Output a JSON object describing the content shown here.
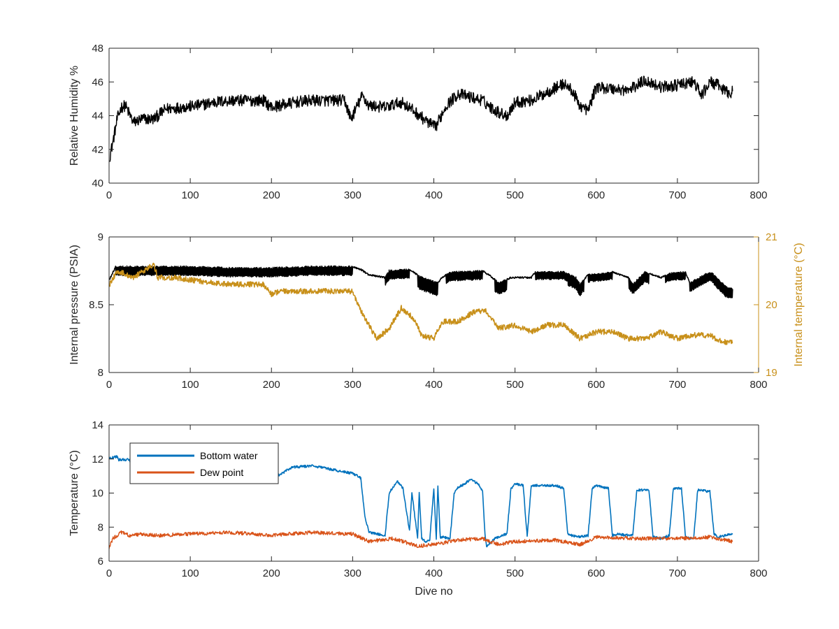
{
  "chart_data": [
    {
      "type": "line",
      "xlabel": "",
      "ylabel": "Relative Humidity %",
      "xlim": [
        0,
        800
      ],
      "ylim": [
        40,
        48
      ],
      "xticks": [
        "0",
        "100",
        "200",
        "300",
        "400",
        "500",
        "600",
        "700",
        "800"
      ],
      "yticks": [
        "40",
        "42",
        "44",
        "46",
        "48"
      ],
      "series": [
        {
          "color": "#000000",
          "noise": 0.35,
          "x": [
            1,
            5,
            10,
            15,
            20,
            30,
            40,
            55,
            70,
            90,
            110,
            130,
            150,
            170,
            190,
            200,
            210,
            230,
            250,
            270,
            290,
            298,
            305,
            312,
            320,
            340,
            360,
            375,
            390,
            402,
            415,
            430,
            445,
            460,
            470,
            480,
            490,
            500,
            520,
            540,
            560,
            570,
            580,
            590,
            600,
            620,
            640,
            660,
            680,
            700,
            720,
            730,
            740,
            750,
            760,
            768
          ],
          "y": [
            41.6,
            42.5,
            43.8,
            44.5,
            44.6,
            43.6,
            43.8,
            43.8,
            44.4,
            44.5,
            44.6,
            44.8,
            44.9,
            44.9,
            44.9,
            44.5,
            44.6,
            44.8,
            44.9,
            44.9,
            44.9,
            43.8,
            44.5,
            45.2,
            44.6,
            44.5,
            44.8,
            44.3,
            43.7,
            43.3,
            44.6,
            45.3,
            45.1,
            44.9,
            44.5,
            44.2,
            44.0,
            44.8,
            44.9,
            45.4,
            45.9,
            45.5,
            44.6,
            44.3,
            45.7,
            45.6,
            45.5,
            46.1,
            45.7,
            45.8,
            46.0,
            45.2,
            46.0,
            45.8,
            45.4,
            45.4
          ]
        }
      ]
    },
    {
      "type": "line",
      "xlabel": "",
      "ylabel": "Internal pressure (PSIA)",
      "y2label": "Internal temperature (°C)",
      "xlim": [
        0,
        800
      ],
      "ylim": [
        8,
        9
      ],
      "y2lim": [
        19,
        21
      ],
      "xticks": [
        "0",
        "100",
        "200",
        "300",
        "400",
        "500",
        "600",
        "700",
        "800"
      ],
      "yticks": [
        "8",
        "8.5",
        "9"
      ],
      "y2ticks": [
        "19",
        "20",
        "21"
      ],
      "y2color": "#c8901a",
      "series": [
        {
          "axis": "left",
          "color": "#000000",
          "noise": 0.006,
          "osc": [
            [
              8,
              300,
              0.06
            ],
            [
              340,
              370,
              0.06
            ],
            [
              380,
              405,
              0.09
            ],
            [
              415,
              460,
              0.06
            ],
            [
              475,
              490,
              0.08
            ],
            [
              525,
              565,
              0.05
            ],
            [
              565,
              585,
              0.08
            ],
            [
              590,
              620,
              0.05
            ],
            [
              640,
              665,
              0.07
            ],
            [
              685,
              710,
              0.05
            ],
            [
              715,
              745,
              0.06
            ],
            [
              745,
              768,
              0.07
            ]
          ],
          "x": [
            1,
            8,
            50,
            100,
            150,
            200,
            250,
            300,
            310,
            320,
            340,
            345,
            370,
            385,
            405,
            410,
            420,
            460,
            470,
            480,
            495,
            520,
            525,
            560,
            575,
            580,
            590,
            620,
            640,
            645,
            660,
            680,
            690,
            710,
            715,
            740,
            745,
            760,
            768
          ],
          "y": [
            8.69,
            8.78,
            8.78,
            8.78,
            8.77,
            8.77,
            8.78,
            8.78,
            8.76,
            8.72,
            8.7,
            8.75,
            8.76,
            8.7,
            8.66,
            8.7,
            8.74,
            8.75,
            8.71,
            8.66,
            8.7,
            8.7,
            8.74,
            8.74,
            8.7,
            8.65,
            8.72,
            8.74,
            8.7,
            8.65,
            8.74,
            8.7,
            8.73,
            8.74,
            8.66,
            8.74,
            8.72,
            8.63,
            8.62
          ]
        },
        {
          "axis": "right",
          "color": "#c8901a",
          "noise": 0.04,
          "x": [
            1,
            10,
            30,
            55,
            60,
            80,
            110,
            150,
            170,
            190,
            200,
            210,
            250,
            290,
            300,
            305,
            315,
            330,
            345,
            360,
            375,
            385,
            400,
            410,
            430,
            450,
            465,
            480,
            500,
            520,
            540,
            560,
            580,
            600,
            620,
            640,
            660,
            680,
            700,
            720,
            740,
            755,
            768
          ],
          "y": [
            20.3,
            20.5,
            20.4,
            20.6,
            20.4,
            20.4,
            20.35,
            20.3,
            20.3,
            20.3,
            20.15,
            20.2,
            20.2,
            20.2,
            20.2,
            20.05,
            19.8,
            19.5,
            19.65,
            19.95,
            19.8,
            19.55,
            19.5,
            19.75,
            19.75,
            19.9,
            19.9,
            19.65,
            19.7,
            19.6,
            19.7,
            19.7,
            19.5,
            19.6,
            19.6,
            19.5,
            19.5,
            19.6,
            19.5,
            19.55,
            19.55,
            19.45,
            19.45
          ]
        }
      ]
    },
    {
      "type": "line",
      "xlabel": "Dive no",
      "ylabel": "Temperature (°C)",
      "xlim": [
        0,
        800
      ],
      "ylim": [
        6,
        15
      ],
      "xticks": [
        "0",
        "100",
        "200",
        "300",
        "400",
        "500",
        "600",
        "700",
        "800"
      ],
      "yticks": [
        "6",
        "8",
        "10",
        "12",
        "14"
      ],
      "legend": "top-left",
      "series": [
        {
          "name": "Bottom water",
          "color": "#0072bd",
          "noise": 0.08,
          "x": [
            0,
            10,
            12,
            25,
            27,
            100,
            150,
            200,
            205,
            210,
            225,
            250,
            270,
            300,
            310,
            315,
            320,
            330,
            340,
            345,
            355,
            362,
            370,
            373,
            380,
            382,
            385,
            390,
            395,
            400,
            403,
            405,
            408,
            410,
            420,
            425,
            430,
            435,
            445,
            455,
            460,
            463,
            465,
            475,
            480,
            490,
            495,
            500,
            510,
            515,
            520,
            550,
            560,
            565,
            570,
            580,
            590,
            595,
            600,
            615,
            620,
            625,
            640,
            645,
            650,
            665,
            670,
            680,
            690,
            695,
            705,
            710,
            720,
            725,
            740,
            745,
            750,
            768
          ],
          "y": [
            12.8,
            12.9,
            12.7,
            12.7,
            12.4,
            12.4,
            12.4,
            12.3,
            11.8,
            11.7,
            12.2,
            12.3,
            12.1,
            11.8,
            11.5,
            9.0,
            7.9,
            7.8,
            7.7,
            10.5,
            11.3,
            10.8,
            8.0,
            10.5,
            7.5,
            10.5,
            7.5,
            7.3,
            7.4,
            10.8,
            7.5,
            10.9,
            7.5,
            7.6,
            7.5,
            10.5,
            10.9,
            11.0,
            11.4,
            11.1,
            10.6,
            7.8,
            7.0,
            7.5,
            7.6,
            7.8,
            10.8,
            11.1,
            11.0,
            7.6,
            11.0,
            11.0,
            10.8,
            7.8,
            7.7,
            7.6,
            7.7,
            10.8,
            11.0,
            10.8,
            7.7,
            7.8,
            7.7,
            7.7,
            10.7,
            10.7,
            7.6,
            7.5,
            7.7,
            10.8,
            10.8,
            7.6,
            7.5,
            10.7,
            10.6,
            7.8,
            7.6,
            7.8
          ]
        },
        {
          "name": "Dew point",
          "color": "#d95319",
          "noise": 0.12,
          "x": [
            0,
            5,
            15,
            25,
            40,
            60,
            100,
            150,
            200,
            220,
            250,
            300,
            320,
            350,
            380,
            400,
            430,
            460,
            480,
            500,
            550,
            580,
            600,
            650,
            700,
            740,
            768
          ],
          "y": [
            6.9,
            7.5,
            7.9,
            7.7,
            7.8,
            7.7,
            7.8,
            7.9,
            7.7,
            7.8,
            7.9,
            7.8,
            7.3,
            7.5,
            7.0,
            7.1,
            7.4,
            7.5,
            7.1,
            7.3,
            7.4,
            7.1,
            7.6,
            7.5,
            7.5,
            7.6,
            7.3
          ]
        }
      ]
    }
  ]
}
